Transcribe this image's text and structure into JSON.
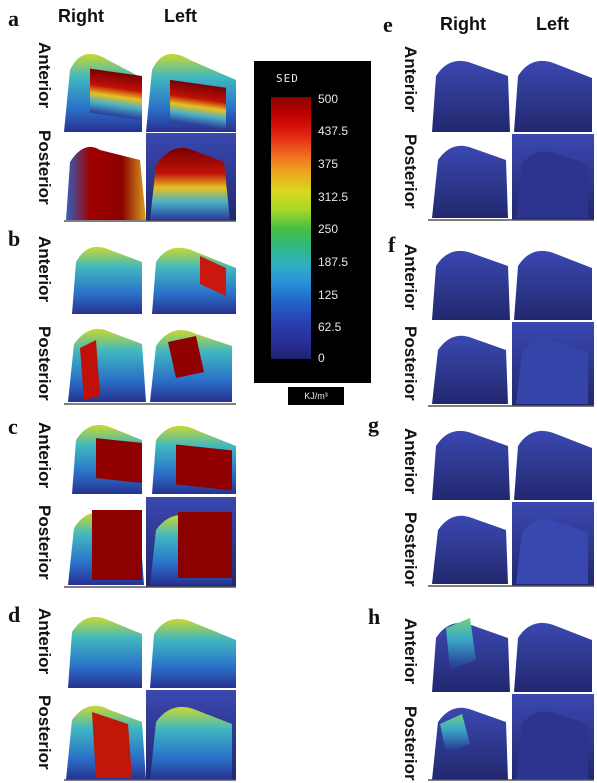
{
  "legend": {
    "title": "SED",
    "ticks": [
      "500",
      "437.5",
      "375",
      "312.5",
      "250",
      "187.5",
      "125",
      "62.5",
      "0"
    ],
    "unit": "KJ/m³"
  },
  "columns": {
    "right": "Right",
    "left": "Left"
  },
  "rows": {
    "anterior": "Anterior",
    "posterior": "Posterior"
  },
  "panels": [
    {
      "letter": "a",
      "level": "high"
    },
    {
      "letter": "b",
      "level": "mixed"
    },
    {
      "letter": "c",
      "level": "high"
    },
    {
      "letter": "d",
      "level": "mixed"
    },
    {
      "letter": "e",
      "level": "low"
    },
    {
      "letter": "f",
      "level": "low"
    },
    {
      "letter": "g",
      "level": "low"
    },
    {
      "letter": "h",
      "level": "low-green"
    }
  ],
  "colors": {
    "low": "#2a2f8a",
    "mid": "#3cb8d8",
    "high": "#a00000",
    "yellow": "#e0d830"
  }
}
